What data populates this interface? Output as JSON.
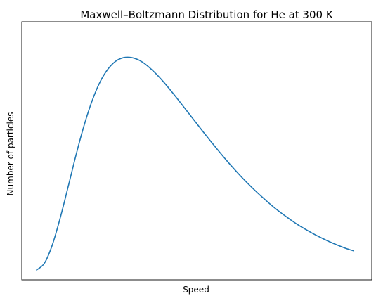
{
  "chart_data": {
    "type": "line",
    "title": "Maxwell–Boltzmann Distribution for He at 300 K",
    "xlabel": "Speed",
    "ylabel": "Number of particles",
    "xticks": [],
    "yticks": [],
    "grid": false,
    "legend": "none",
    "series_color": "#1f77b4",
    "series": [
      {
        "x": [
          0.0,
          0.025,
          0.05,
          0.075,
          0.1,
          0.125,
          0.15,
          0.175,
          0.2,
          0.225,
          0.25,
          0.275,
          0.3,
          0.325,
          0.35,
          0.375,
          0.4,
          0.425,
          0.45,
          0.475,
          0.5,
          0.525,
          0.55,
          0.575,
          0.6,
          0.625,
          0.65,
          0.675,
          0.7,
          0.725,
          0.75,
          0.775,
          0.8,
          0.825,
          0.85,
          0.875,
          0.9,
          0.925,
          0.95,
          0.975,
          1.0
        ],
        "y": [
          0.0,
          0.029,
          0.107,
          0.222,
          0.354,
          0.489,
          0.612,
          0.715,
          0.795,
          0.85,
          0.884,
          0.899,
          0.899,
          0.887,
          0.864,
          0.833,
          0.797,
          0.757,
          0.715,
          0.672,
          0.629,
          0.586,
          0.544,
          0.503,
          0.463,
          0.425,
          0.389,
          0.355,
          0.323,
          0.293,
          0.264,
          0.238,
          0.214,
          0.191,
          0.171,
          0.152,
          0.135,
          0.119,
          0.105,
          0.092,
          0.081
        ]
      }
    ]
  }
}
